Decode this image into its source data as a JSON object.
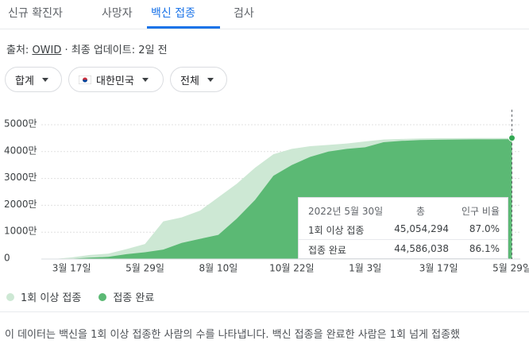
{
  "tabs": [
    "신규 확진자",
    "사망자",
    "백신 접종",
    "검사"
  ],
  "source": {
    "label": "출처:",
    "link": "OWID",
    "updated": "· 최종 업데이트: 2일 전"
  },
  "filters": [
    "합계",
    "대한민국",
    "전체"
  ],
  "chart_data": {
    "type": "area",
    "categories": [
      null,
      "3월 17일",
      null,
      null,
      null,
      "5월 29일",
      null,
      null,
      null,
      "8월 10일",
      null,
      null,
      null,
      "10월 22일",
      null,
      null,
      null,
      "1월 3일",
      null,
      null,
      null,
      "3월 17일",
      null,
      null,
      null,
      "5월 29일"
    ],
    "series": [
      {
        "name": "1회 이상 접종",
        "color": "#cde8d4",
        "values": [
          0,
          600000,
          1500000,
          2000000,
          3700000,
          5600000,
          14000000,
          15500000,
          18000000,
          23000000,
          28000000,
          34000000,
          39000000,
          41000000,
          42000000,
          42500000,
          43000000,
          43800000,
          44500000,
          44700000,
          44900000,
          45000000,
          45020000,
          45040000,
          45050000,
          45054294
        ]
      },
      {
        "name": "접종 완료",
        "color": "#5bb974",
        "values": [
          0,
          100000,
          500000,
          800000,
          1800000,
          2500000,
          3500000,
          6000000,
          7500000,
          9000000,
          15000000,
          22000000,
          31000000,
          35000000,
          38000000,
          40000000,
          41000000,
          41600000,
          43500000,
          44000000,
          44300000,
          44400000,
          44500000,
          44550000,
          44580000,
          44586038
        ]
      }
    ],
    "ylim": [
      0,
      50000000
    ],
    "yticks": [
      {
        "value": 0,
        "label": "0"
      },
      {
        "value": 10000000,
        "label": "1000만"
      },
      {
        "value": 20000000,
        "label": "2000만"
      },
      {
        "value": 30000000,
        "label": "3000만"
      },
      {
        "value": 40000000,
        "label": "4000만"
      },
      {
        "value": 50000000,
        "label": "5000만"
      }
    ],
    "grid": true,
    "tooltip": {
      "date": "2022년 5월 30일",
      "total": "총",
      "ratio": "인구 비율",
      "rows": [
        [
          "1회 이상 접종",
          "45,054,294",
          "87.0%"
        ],
        [
          "접종 완료",
          "44,586,038",
          "86.1%"
        ]
      ]
    }
  },
  "footer": "이 데이터는 백신을 1회 이상 접종한 사람의 수를 나타냅니다. 백신 접종을 완료한 사람은 1회 넘게 접종했"
}
